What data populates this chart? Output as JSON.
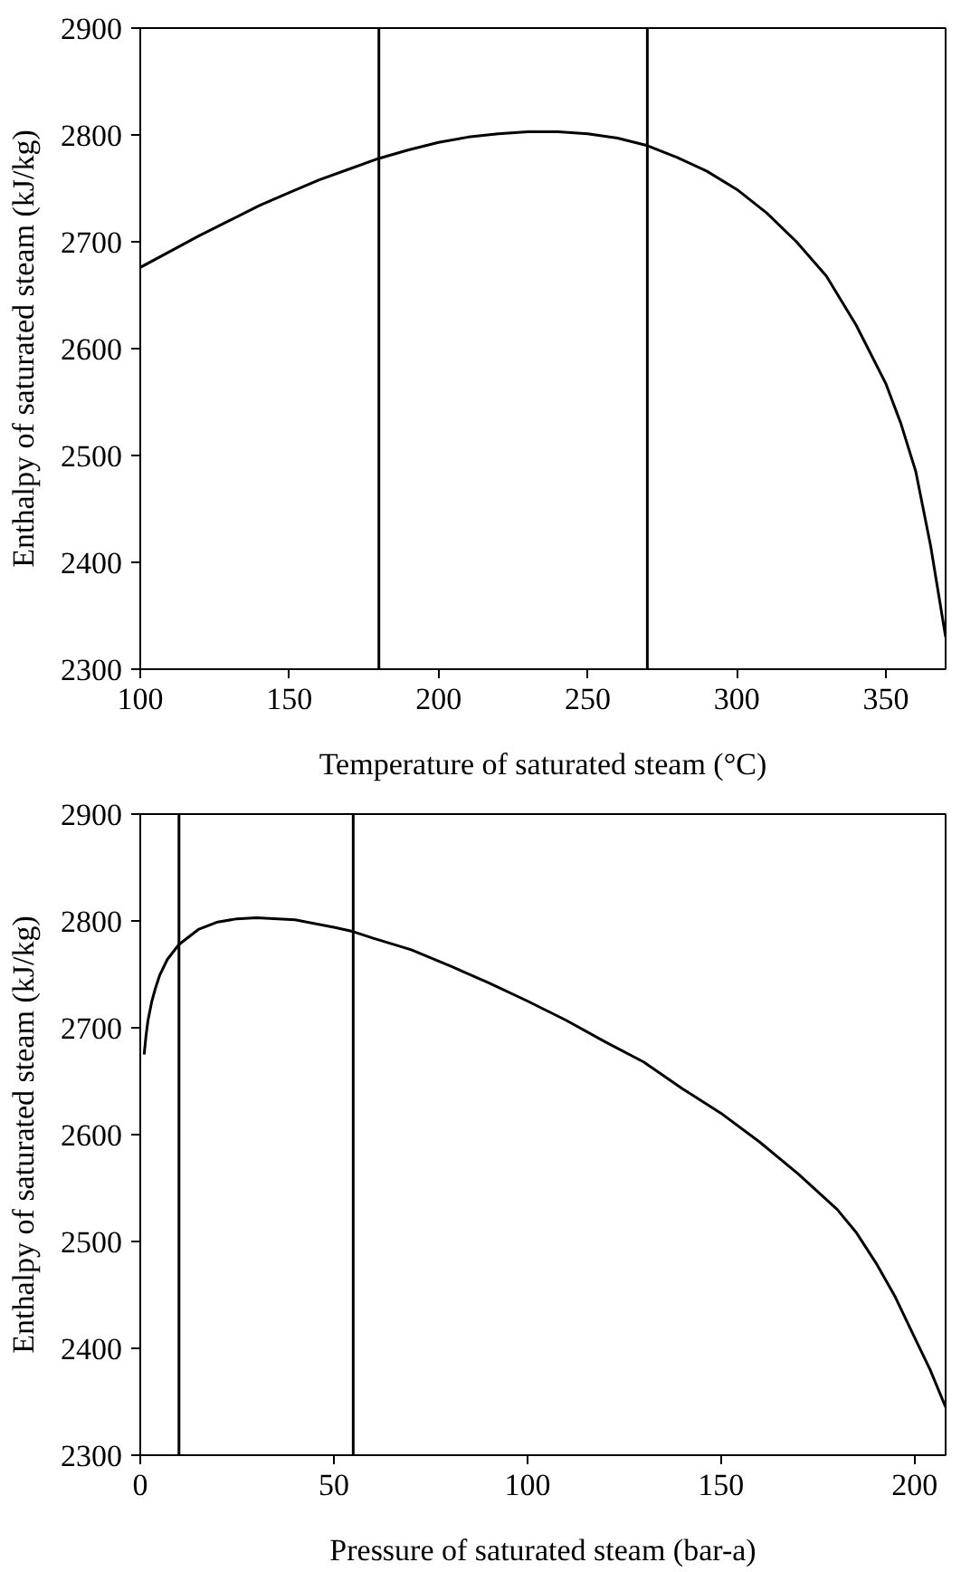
{
  "chart_data": [
    {
      "type": "line",
      "xlabel": "Temperature of saturated steam (°C)",
      "ylabel": "Enthalpy of saturated steam (kJ/kg)",
      "xlim": [
        100,
        370
      ],
      "ylim": [
        2300,
        2900
      ],
      "xticks": [
        100,
        150,
        200,
        250,
        300,
        350
      ],
      "yticks": [
        2300,
        2400,
        2500,
        2600,
        2700,
        2800,
        2900
      ],
      "grid": false,
      "marker": "none",
      "line_style": "solid",
      "series": [
        {
          "color": "#000000",
          "x": [
            100,
            110,
            120,
            130,
            140,
            150,
            160,
            170,
            180,
            190,
            200,
            210,
            220,
            230,
            240,
            250,
            260,
            270,
            280,
            290,
            300,
            310,
            320,
            330,
            340,
            350,
            355,
            360,
            365,
            370
          ],
          "values": [
            2676,
            2691,
            2706,
            2720,
            2734,
            2746,
            2758,
            2768,
            2778,
            2786,
            2793,
            2798,
            2801,
            2803,
            2803,
            2801,
            2797,
            2790,
            2779,
            2766,
            2749,
            2727,
            2700,
            2668,
            2622,
            2567,
            2530,
            2485,
            2415,
            2330
          ]
        }
      ],
      "ref_lines": [
        {
          "axis": "x",
          "value": 180,
          "color": "#000000"
        },
        {
          "axis": "x",
          "value": 270,
          "color": "#000000"
        }
      ]
    },
    {
      "type": "line",
      "xlabel": "Pressure of saturated steam (bar-a)",
      "ylabel": "Enthalpy of saturated steam (kJ/kg)",
      "xlim": [
        0,
        208
      ],
      "ylim": [
        2300,
        2900
      ],
      "xticks": [
        0,
        50,
        100,
        150,
        200
      ],
      "yticks": [
        2300,
        2400,
        2500,
        2600,
        2700,
        2800,
        2900
      ],
      "grid": false,
      "marker": "none",
      "line_style": "solid",
      "series": [
        {
          "color": "#000000",
          "x": [
            1,
            1.5,
            2,
            3,
            4,
            5,
            7,
            10,
            15,
            20,
            25,
            30,
            40,
            50,
            55,
            60,
            70,
            80,
            90,
            100,
            110,
            120,
            130,
            140,
            150,
            160,
            170,
            180,
            185,
            190,
            195,
            200,
            204,
            208
          ],
          "values": [
            2675,
            2693,
            2707,
            2725,
            2738,
            2749,
            2764,
            2778,
            2792,
            2799,
            2802,
            2803,
            2801,
            2794,
            2790,
            2784,
            2773,
            2758,
            2742,
            2725,
            2707,
            2687,
            2668,
            2643,
            2620,
            2593,
            2563,
            2530,
            2508,
            2480,
            2448,
            2410,
            2380,
            2345
          ]
        }
      ],
      "ref_lines": [
        {
          "axis": "x",
          "value": 10,
          "color": "#000000"
        },
        {
          "axis": "x",
          "value": 55,
          "color": "#000000"
        }
      ]
    }
  ]
}
